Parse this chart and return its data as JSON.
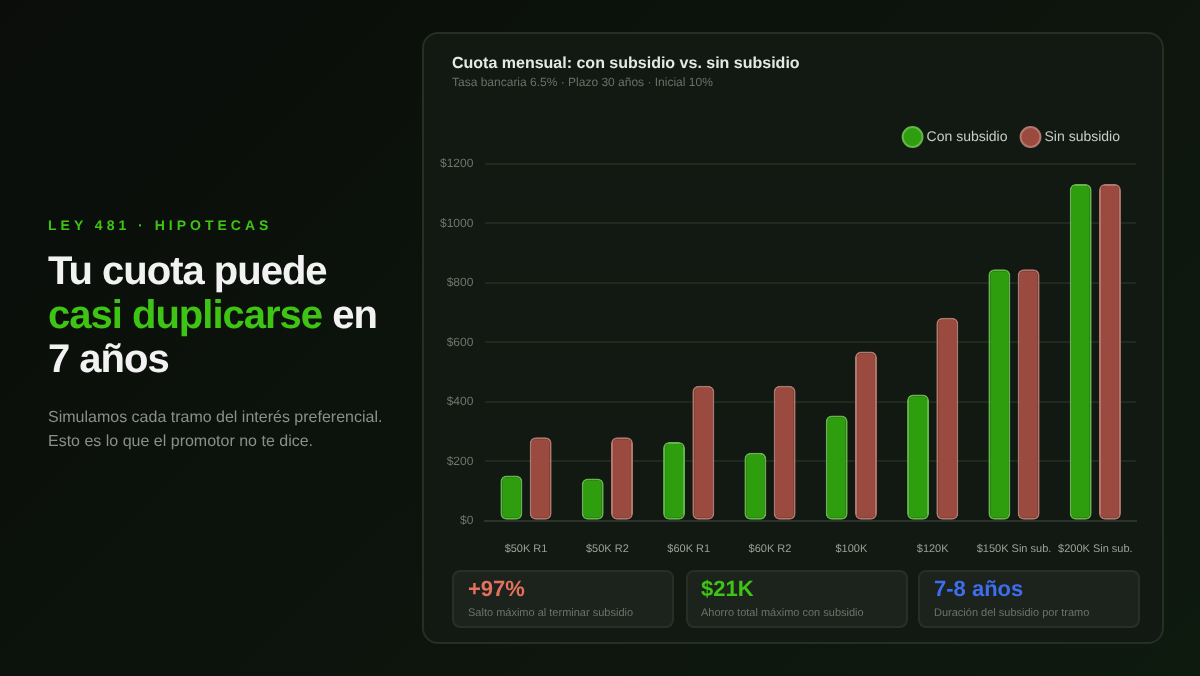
{
  "chart_data": {
    "type": "bar",
    "title": "Cuota mensual: con subsidio vs. sin subsidio",
    "subtitle": "Tasa bancaria 6.5% · Plazo 30 años · Inicial 10%",
    "categories": [
      "$50K R1",
      "$50K R2",
      "$60K R1",
      "$60K R2",
      "$100K",
      "$120K",
      "$150K Sin sub.",
      "$200K Sin sub."
    ],
    "series": [
      {
        "name": "Con subsidio",
        "color": "#2e9e0e",
        "values": [
          152,
          142,
          265,
          229,
          354,
          425,
          846,
          1133
        ]
      },
      {
        "name": "Sin subsidio",
        "color": "#9a4a3e",
        "values": [
          281,
          281,
          454,
          454,
          569,
          683,
          846,
          1133
        ]
      }
    ],
    "ylim": [
      0,
      1200
    ],
    "yticks": [
      {
        "value": 0,
        "label": "$0"
      },
      {
        "value": 200,
        "label": "$200"
      },
      {
        "value": 400,
        "label": "$400"
      },
      {
        "value": 600,
        "label": "$600"
      },
      {
        "value": 800,
        "label": "$800"
      },
      {
        "value": 1000,
        "label": "$1000"
      },
      {
        "value": 1200,
        "label": "$1200"
      }
    ],
    "grid": "y",
    "legend": "top right",
    "annotations": [
      "LEY 481 · HIPOTECAS",
      "Tu cuota puede",
      "casi duplicarse",
      "en 7 años",
      "Simulamos cada tramo del interés preferencial. Esto es lo que el promotor no te dice.",
      "+97%",
      "Salto máximo al terminar subsidio",
      "$21K",
      "Ahorro total máximo con subsidio",
      "7-8 años",
      "Duración del subsidio por tramo"
    ]
  }
}
